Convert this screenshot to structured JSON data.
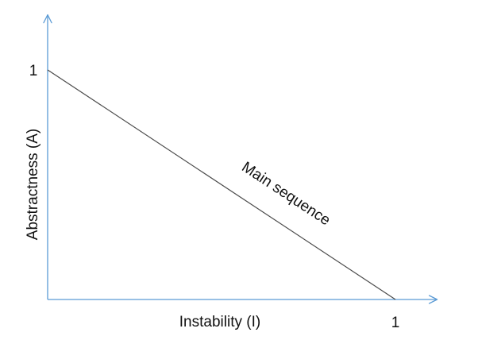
{
  "chart_data": {
    "type": "line",
    "title": "",
    "xlabel": "Instability (I)",
    "ylabel": "Abstractness (A)",
    "xlim": [
      0,
      1.12
    ],
    "ylim": [
      0,
      1.24
    ],
    "x_ticks": [
      1
    ],
    "x_tick_labels": [
      "1"
    ],
    "y_ticks": [
      1
    ],
    "y_tick_labels": [
      "1"
    ],
    "grid": false,
    "legend": "none",
    "series": [
      {
        "name": "Main sequence",
        "x": [
          0,
          1
        ],
        "y": [
          1,
          0
        ],
        "color": "#4a4a4a"
      }
    ],
    "axis_color": "#5b9bd5"
  }
}
